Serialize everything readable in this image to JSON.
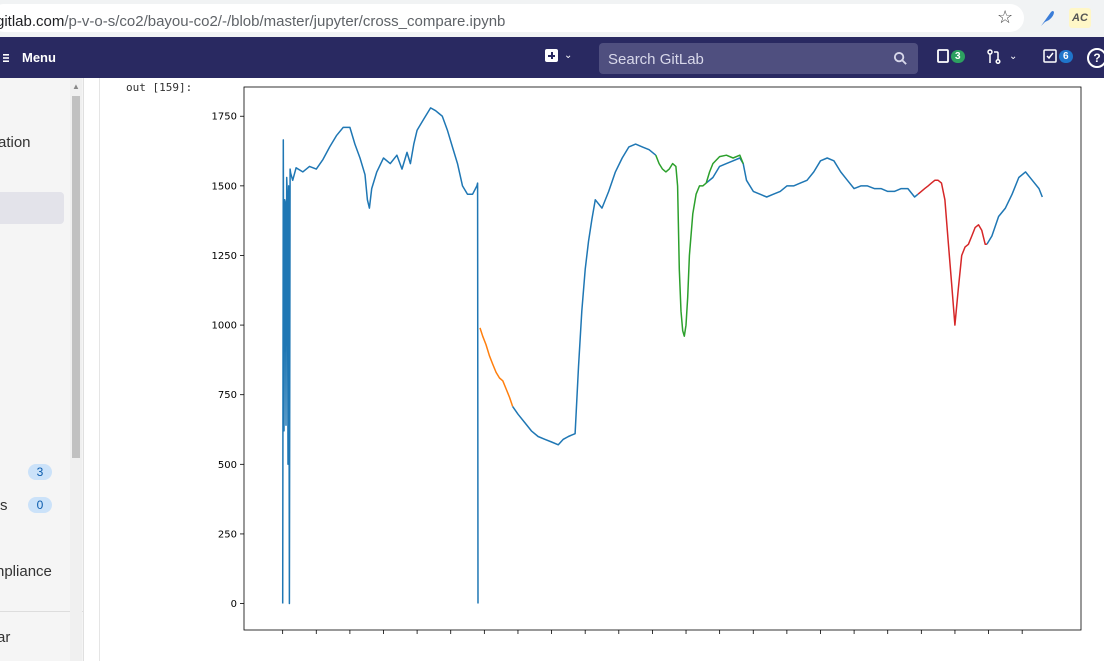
{
  "browser": {
    "url_host": "gitlab.com",
    "url_path": "/p-v-o-s/co2/bayou-co2/-/blob/master/jupyter/cross_compare.ipynb",
    "extension_label": "AC"
  },
  "topnav": {
    "menu_label": "Menu",
    "search_placeholder": "Search GitLab",
    "issues_count": "3",
    "todos_count": "6"
  },
  "sidebar": {
    "items": [
      {
        "label": "ation"
      },
      {
        "label": "3 ",
        "badge": "3"
      },
      {
        "label": "s",
        "badge": "0"
      },
      {
        "label": "npliance"
      },
      {
        "label": "ar"
      }
    ]
  },
  "notebook": {
    "prompt": "out [159]:"
  },
  "colors": {
    "blue": "#1f77b4",
    "orange": "#ff7f0e",
    "green": "#2ca02c",
    "red": "#d62728",
    "nav_bg": "#292961"
  },
  "chart_data": {
    "type": "line",
    "xlim": [
      -115,
      2375
    ],
    "ylim": [
      -95,
      1855
    ],
    "x_ticks": [
      0,
      100,
      200,
      300,
      400,
      500,
      600,
      700,
      800,
      900,
      1000,
      1100,
      1200,
      1300,
      1400,
      1500,
      1600,
      1700,
      1800,
      1900,
      2000,
      2100,
      2200
    ],
    "y_ticks": [
      0,
      250,
      500,
      750,
      1000,
      1250,
      1500,
      1750
    ],
    "series": [
      {
        "color": "#1f77b4",
        "x": [
          0,
          2,
          4,
          6,
          8,
          10,
          12,
          14,
          16,
          18,
          20,
          22,
          24,
          30,
          40,
          60,
          80,
          100,
          120,
          140,
          160,
          180,
          200,
          215,
          230,
          245,
          252,
          258,
          265,
          280,
          300,
          320,
          340,
          355,
          370,
          380,
          390,
          400,
          420,
          440,
          455,
          465,
          475,
          490,
          505,
          520,
          535,
          550,
          565,
          578,
          580,
          581
        ],
        "y": [
          0,
          1665,
          620,
          1450,
          1440,
          640,
          1530,
          1460,
          500,
          1500,
          0,
          1560,
          1545,
          1520,
          1565,
          1550,
          1570,
          1560,
          1595,
          1640,
          1680,
          1710,
          1710,
          1650,
          1600,
          1540,
          1450,
          1420,
          1490,
          1550,
          1600,
          1580,
          1610,
          1560,
          1620,
          1580,
          1650,
          1700,
          1740,
          1780,
          1770,
          1760,
          1750,
          1700,
          1640,
          1580,
          1500,
          1470,
          1470,
          1500,
          1510,
          0
        ]
      },
      {
        "color": "#1f77b4",
        "x": [
          684,
          700,
          720,
          740,
          760,
          780,
          800,
          820,
          835,
          850,
          860,
          870,
          880,
          890,
          900,
          910,
          920,
          930,
          950,
          970,
          990,
          1010,
          1030,
          1050,
          1070,
          1090,
          1110
        ],
        "y": [
          708,
          680,
          650,
          620,
          600,
          590,
          580,
          570,
          590,
          600,
          605,
          610,
          850,
          1050,
          1200,
          1300,
          1380,
          1450,
          1420,
          1480,
          1550,
          1600,
          1640,
          1650,
          1640,
          1630,
          1610
        ]
      },
      {
        "color": "#1f77b4",
        "x": [
          1260,
          1280,
          1300,
          1320,
          1340,
          1360,
          1370,
          1380,
          1400,
          1420,
          1440,
          1460,
          1480,
          1500,
          1520,
          1540,
          1560,
          1580,
          1600,
          1620,
          1640,
          1660,
          1680,
          1700,
          1720,
          1740,
          1760,
          1780,
          1800,
          1820,
          1840,
          1860,
          1880,
          1890
        ],
        "y": [
          1510,
          1530,
          1570,
          1580,
          1590,
          1600,
          1580,
          1520,
          1480,
          1470,
          1460,
          1470,
          1480,
          1500,
          1500,
          1510,
          1520,
          1550,
          1590,
          1600,
          1590,
          1550,
          1520,
          1490,
          1500,
          1500,
          1490,
          1490,
          1480,
          1480,
          1490,
          1490,
          1460,
          1470
        ]
      },
      {
        "color": "#1f77b4",
        "x": [
          2095,
          2110,
          2130,
          2150,
          2170,
          2190,
          2210,
          2230,
          2250,
          2260
        ],
        "y": [
          1290,
          1320,
          1390,
          1420,
          1470,
          1530,
          1550,
          1520,
          1490,
          1460
        ]
      },
      {
        "color": "#ff7f0e",
        "x": [
          587,
          595,
          605,
          615,
          625,
          635,
          645,
          655,
          665,
          675,
          684
        ],
        "y": [
          990,
          960,
          930,
          890,
          860,
          830,
          810,
          800,
          770,
          740,
          708
        ]
      },
      {
        "color": "#2ca02c",
        "x": [
          1110,
          1120,
          1130,
          1140,
          1150,
          1160,
          1170,
          1175,
          1180,
          1185,
          1190,
          1195,
          1200,
          1205,
          1210,
          1220,
          1230,
          1240,
          1250,
          1260
        ],
        "y": [
          1610,
          1580,
          1560,
          1550,
          1560,
          1580,
          1570,
          1500,
          1200,
          1050,
          980,
          960,
          1000,
          1100,
          1250,
          1400,
          1470,
          1500,
          1500,
          1510
        ]
      },
      {
        "color": "#2ca02c",
        "x": [
          1260,
          1270,
          1280,
          1300,
          1320,
          1340,
          1360,
          1370
        ],
        "y": [
          1510,
          1550,
          1580,
          1605,
          1610,
          1600,
          1610,
          1580
        ]
      },
      {
        "color": "#d62728",
        "x": [
          1890,
          1900,
          1910,
          1920,
          1930,
          1940,
          1950,
          1960,
          1970,
          1980,
          1990,
          2000,
          2010,
          2020,
          2030,
          2040,
          2050,
          2060,
          2070,
          2080,
          2090,
          2095
        ],
        "y": [
          1470,
          1480,
          1490,
          1500,
          1510,
          1520,
          1520,
          1510,
          1450,
          1300,
          1150,
          1000,
          1130,
          1250,
          1280,
          1290,
          1320,
          1350,
          1360,
          1340,
          1290,
          1290
        ]
      }
    ]
  }
}
